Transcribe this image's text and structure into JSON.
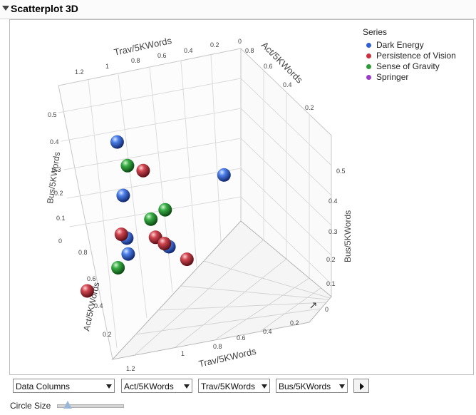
{
  "window": {
    "title": "Scatterplot 3D"
  },
  "chart_data": {
    "type": "scatter3d",
    "legend_title": "Series",
    "legend_placement": "top-right",
    "series": [
      {
        "name": "Dark Energy",
        "color": "#2f5fd0",
        "points": [
          {
            "act": 0.5,
            "trav": 0.1,
            "bus": 0.4
          },
          {
            "act": 0.6,
            "trav": 0.55,
            "bus": 0.32
          },
          {
            "act": 0.1,
            "trav": 1.2,
            "bus": 0.2
          },
          {
            "act": 0.5,
            "trav": 0.3,
            "bus": 0.1
          },
          {
            "act": 0.5,
            "trav": 0.33,
            "bus": 0.05
          },
          {
            "act": 0.3,
            "trav": 0.6,
            "bus": 0.0
          }
        ]
      },
      {
        "name": "Persistence of Vision",
        "color": "#c8323d",
        "points": [
          {
            "act": 0.6,
            "trav": 1.0,
            "bus": 0.45
          },
          {
            "act": 0.5,
            "trav": 0.18,
            "bus": 0.1
          },
          {
            "act": 0.3,
            "trav": 1.0,
            "bus": 0.0
          },
          {
            "act": 0.3,
            "trav": 0.3,
            "bus": 0.0
          },
          {
            "act": 0.7,
            "trav": 0.05,
            "bus": 0.0
          },
          {
            "act": 0.3,
            "trav": 0.5,
            "bus": 0.0
          }
        ]
      },
      {
        "name": "Sense of Gravity",
        "color": "#2e9a3a",
        "points": [
          {
            "act": 0.6,
            "trav": 0.65,
            "bus": 0.43
          },
          {
            "act": 0.2,
            "trav": 0.2,
            "bus": 0.03
          },
          {
            "act": 0.3,
            "trav": 0.2,
            "bus": 0.05
          },
          {
            "act": 0.5,
            "trav": 0.1,
            "bus": -0.02
          }
        ]
      },
      {
        "name": "Springer",
        "color": "#9a3cc8",
        "points": []
      }
    ],
    "axes": {
      "act": {
        "label": "Act/5KWords",
        "ticks_back": [
          "0.8",
          "0.6",
          "0.4",
          "0.2"
        ],
        "ticks_front": [
          "0.8",
          "0.6",
          "0.4",
          "0.2"
        ]
      },
      "trav": {
        "label": "Trav/5KWords",
        "ticks_back": [
          "1.2",
          "1",
          "0.8",
          "0.6",
          "0.4",
          "0.2",
          "0"
        ],
        "ticks_front": [
          "1.2",
          "1",
          "0.8",
          "0.6",
          "0.4",
          "0.2"
        ]
      },
      "bus": {
        "label": "Bus/5KWords",
        "ticks_left": [
          "0.5",
          "0.4",
          "0.3",
          "0.2",
          "0.1",
          "0"
        ],
        "ticks_right": [
          "0.5",
          "0.4",
          "0.3",
          "0.2",
          "0.1",
          "0"
        ],
        "ticks_act_left": [
          "0.8",
          "0.6",
          "0.4",
          "0.2"
        ]
      }
    }
  },
  "controls": {
    "data_columns": "Data Columns",
    "x_select": "Act/5KWords",
    "y_select": "Trav/5KWords",
    "z_select": "Bus/5KWords",
    "circle_size_label": "Circle Size"
  }
}
